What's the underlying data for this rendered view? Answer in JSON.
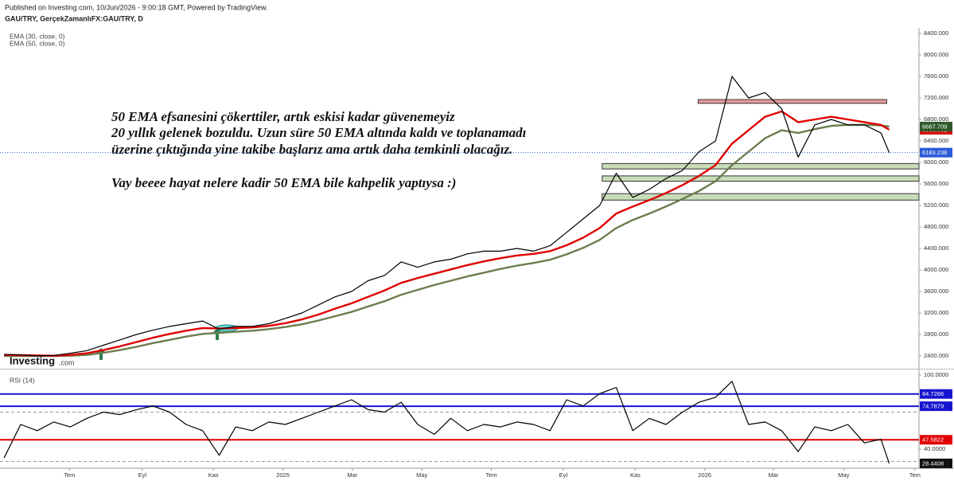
{
  "chart_data": [
    {
      "type": "line",
      "subtitle": "Published on Investing.com, 10/Jun/2026 - 9:00:18 GMT, Powered by TradingView.",
      "title": "GAU/TRY, GerçekZamanlıFX:GAU/TRY, D",
      "watermark": [
        "Investing",
        ".com"
      ],
      "annotations": [
        "50 EMA efsanesini çökerttiler, artık eskisi kadar güvenemeyiz",
        "20 yıllık gelenek bozuldu. Uzun süre 50 EMA altında kaldı ve toplanamadı",
        "üzerine çıktığında yine takibe başlarız ama artık daha temkinli olacağız.",
        "Vay beeee hayat nelere kadir 50 EMA bile kahpelik yaptıysa :)"
      ],
      "x": [
        0,
        2,
        4,
        6,
        8,
        10,
        12,
        14,
        16,
        18,
        20,
        22,
        24,
        26,
        28,
        30,
        32,
        34,
        36,
        38,
        40,
        42,
        44,
        46,
        48,
        50,
        52,
        54,
        56,
        58,
        60,
        62,
        64,
        66,
        68,
        70,
        72,
        74,
        76,
        78,
        80,
        82,
        84,
        86,
        88,
        90,
        92,
        94,
        96,
        98,
        100,
        102,
        104,
        106,
        107
      ],
      "xlim": [
        -0.5,
        110.6
      ],
      "series": [
        {
          "color": "#000000",
          "label_color": "#2a5bd7",
          "values": [
            2430,
            2420,
            2400,
            2410,
            2450,
            2500,
            2600,
            2700,
            2800,
            2880,
            2950,
            3000,
            3050,
            2900,
            2950,
            2950,
            3000,
            3100,
            3200,
            3350,
            3500,
            3600,
            3800,
            3900,
            4150,
            4050,
            4150,
            4200,
            4300,
            4350,
            4350,
            4400,
            4350,
            4450,
            4700,
            4950,
            5200,
            5800,
            5350,
            5500,
            5700,
            5850,
            6200,
            6400,
            7600,
            7200,
            7300,
            7000,
            6100,
            6700,
            6800,
            6700,
            6700,
            6550,
            6183.238
          ]
        },
        {
          "name": "EMA (30, close, 0)",
          "color": "#e00000",
          "label_color": "#d01010",
          "values": [
            2420,
            2415,
            2410,
            2405,
            2420,
            2450,
            2510,
            2580,
            2660,
            2740,
            2810,
            2870,
            2920,
            2910,
            2920,
            2930,
            2960,
            3010,
            3080,
            3170,
            3280,
            3380,
            3500,
            3620,
            3760,
            3850,
            3930,
            4010,
            4090,
            4160,
            4220,
            4270,
            4300,
            4350,
            4460,
            4600,
            4780,
            5050,
            5180,
            5300,
            5430,
            5580,
            5750,
            5950,
            6350,
            6600,
            6850,
            6950,
            6750,
            6800,
            6850,
            6800,
            6750,
            6700,
            6608.681
          ]
        },
        {
          "name": "EMA (50, close, 0)",
          "color": "#6b7d4e",
          "label_color": "#2e5a2a",
          "values": [
            2400,
            2400,
            2400,
            2400,
            2405,
            2420,
            2460,
            2510,
            2570,
            2640,
            2700,
            2760,
            2810,
            2830,
            2850,
            2870,
            2900,
            2940,
            2990,
            3060,
            3140,
            3220,
            3320,
            3420,
            3540,
            3630,
            3720,
            3800,
            3880,
            3950,
            4020,
            4080,
            4130,
            4190,
            4290,
            4410,
            4560,
            4780,
            4930,
            5050,
            5180,
            5320,
            5470,
            5650,
            5950,
            6200,
            6450,
            6600,
            6550,
            6620,
            6680,
            6700,
            6700,
            6690,
            6667.709
          ]
        }
      ],
      "ylim": [
        2178,
        8504
      ],
      "yticks": [
        {
          "value": 2400,
          "label": "2400.000"
        },
        {
          "value": 2800,
          "label": "2800.000"
        },
        {
          "value": 3200,
          "label": "3200.000"
        },
        {
          "value": 3600,
          "label": "3600.000"
        },
        {
          "value": 4000,
          "label": "4000.000"
        },
        {
          "value": 4400,
          "label": "4400.000"
        },
        {
          "value": 4800,
          "label": "4800.000"
        },
        {
          "value": 5200,
          "label": "5200.000"
        },
        {
          "value": 5600,
          "label": "5600.000"
        },
        {
          "value": 6000,
          "label": "6000.000"
        },
        {
          "value": 6400,
          "label": "6400.000"
        },
        {
          "value": 6800,
          "label": "6800.000"
        },
        {
          "value": 7200,
          "label": "7200.000"
        },
        {
          "value": 7600,
          "label": "7600.000"
        },
        {
          "value": 8000,
          "label": "8000.000"
        },
        {
          "value": 8400,
          "label": "8400.000"
        }
      ],
      "zones": [
        {
          "x": [
            83.9,
            106.7
          ],
          "y": [
            7100,
            7170
          ],
          "color": "#e89a9a"
        },
        {
          "x": [
            72.3,
            110.6
          ],
          "y": [
            5880,
            5980
          ],
          "color": "#c8dcb8"
        },
        {
          "x": [
            72.3,
            110.6
          ],
          "y": [
            5650,
            5750
          ],
          "color": "#c8dcb8"
        },
        {
          "x": [
            72.3,
            110.6
          ],
          "y": [
            5300,
            5420
          ],
          "color": "#c8dcb8"
        }
      ]
    },
    {
      "type": "line",
      "title": "RSI (14)",
      "x": [
        0,
        2,
        4,
        6,
        8,
        10,
        12,
        14,
        16,
        18,
        20,
        22,
        24,
        26,
        28,
        30,
        32,
        34,
        36,
        38,
        40,
        42,
        44,
        46,
        48,
        50,
        52,
        54,
        56,
        58,
        60,
        62,
        64,
        66,
        68,
        70,
        72,
        74,
        76,
        78,
        80,
        82,
        84,
        86,
        88,
        90,
        92,
        94,
        96,
        98,
        100,
        102,
        104,
        106,
        107
      ],
      "xlim": [
        -0.5,
        110.6
      ],
      "series": [
        {
          "color": "#000000",
          "label_color": "#111111",
          "values": [
            33,
            60,
            55,
            62,
            58,
            65,
            70,
            68,
            72,
            75,
            70,
            60,
            55,
            35,
            58,
            55,
            62,
            60,
            65,
            70,
            75,
            80,
            72,
            70,
            78,
            60,
            52,
            65,
            55,
            60,
            58,
            62,
            60,
            55,
            80,
            75,
            85,
            90,
            55,
            65,
            60,
            70,
            78,
            82,
            95,
            60,
            62,
            55,
            38,
            58,
            55,
            60,
            45,
            48,
            28.4408
          ]
        }
      ],
      "ylim": [
        24.5,
        103.9
      ],
      "yticks": [
        {
          "value": 100,
          "label": "100.0000"
        },
        {
          "value": 40,
          "label": "40.0000"
        }
      ],
      "hlines": [
        {
          "value": 84.7266,
          "color": "#1515d0"
        },
        {
          "value": 74.7879,
          "color": "#1515d0"
        },
        {
          "value": 47.5822,
          "color": "#e00000"
        }
      ],
      "bands": [
        70,
        30
      ],
      "xticks": [
        {
          "value": 7.9,
          "label": "Tem"
        },
        {
          "value": 16.7,
          "label": "Eyl"
        },
        {
          "value": 25.3,
          "label": "Kas"
        },
        {
          "value": 33.7,
          "label": "2025"
        },
        {
          "value": 42.1,
          "label": "Mar"
        },
        {
          "value": 50.5,
          "label": "May"
        },
        {
          "value": 58.9,
          "label": "Tem"
        },
        {
          "value": 67.6,
          "label": "Eyl"
        },
        {
          "value": 76.3,
          "label": "Kas"
        },
        {
          "value": 84.7,
          "label": "2026"
        },
        {
          "value": 93.0,
          "label": "Mar"
        },
        {
          "value": 101.5,
          "label": "May"
        },
        {
          "value": 110.1,
          "label": "Tem"
        }
      ]
    }
  ]
}
